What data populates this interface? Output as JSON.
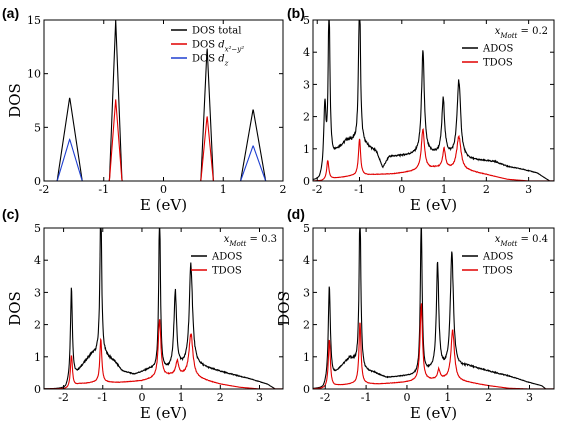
{
  "chart_data": [
    {
      "type": "line",
      "panel_label": "(a)",
      "xlabel": "E (eV)",
      "ylabel": "DOS",
      "xlim": [
        -2,
        2
      ],
      "ylim": [
        0,
        15
      ],
      "xticks": [
        -2,
        -1,
        0,
        1,
        2
      ],
      "yticks": [
        0,
        5,
        10,
        15
      ],
      "legend_position": "top-right",
      "legend": [
        "DOS total",
        "DOS d_{x²−y²}",
        "DOS d_z"
      ],
      "colors": {
        "DOS total": "#000000",
        "DOS d_{x²−y²}": "#e00000",
        "DOS d_z": "#1f3fd0"
      },
      "series": [
        {
          "name": "DOS total",
          "peaks": [
            {
              "x": -1.57,
              "h": 7.8,
              "w": 0.07,
              "shape": "tri"
            },
            {
              "x": -0.8,
              "h": 15.0,
              "w": 0.035,
              "shape": "tri"
            },
            {
              "x": 0.73,
              "h": 12.5,
              "w": 0.035,
              "shape": "tri"
            },
            {
              "x": 1.5,
              "h": 6.7,
              "w": 0.07,
              "shape": "tri"
            }
          ]
        },
        {
          "name": "DOS d_{x²−y²}",
          "peaks": [
            {
              "x": -0.8,
              "h": 7.6,
              "w": 0.035,
              "shape": "tri"
            },
            {
              "x": 0.73,
              "h": 6.1,
              "w": 0.035,
              "shape": "tri"
            }
          ]
        },
        {
          "name": "DOS d_z",
          "peaks": [
            {
              "x": -1.57,
              "h": 3.9,
              "w": 0.07,
              "shape": "tri"
            },
            {
              "x": 1.5,
              "h": 3.3,
              "w": 0.07,
              "shape": "tri"
            }
          ]
        }
      ]
    },
    {
      "type": "line",
      "panel_label": "(b)",
      "annotation": "x_Mott = 0.2",
      "xlabel": "E (eV)",
      "ylabel": "",
      "xlim": [
        -2.1,
        3.6
      ],
      "ylim": [
        0,
        5
      ],
      "xticks": [
        -2,
        -1,
        0,
        1,
        2,
        3
      ],
      "yticks": [
        0,
        1,
        2,
        3,
        4,
        5
      ],
      "legend_position": "top-right",
      "legend": [
        "ADOS",
        "TDOS"
      ],
      "colors": {
        "ADOS": "#000000",
        "TDOS": "#e00000"
      },
      "series": [
        {
          "name": "ADOS",
          "background": [
            [
              -1.95,
              0
            ],
            [
              -1.8,
              0.3
            ],
            [
              -1.55,
              0.9
            ],
            [
              -1.3,
              1.25
            ],
            [
              -1.05,
              1.2
            ],
            [
              -0.8,
              1.05
            ],
            [
              -0.6,
              0.9
            ],
            [
              -0.45,
              0.4
            ],
            [
              -0.3,
              0.75
            ],
            [
              0.2,
              0.8
            ],
            [
              0.5,
              0.85
            ],
            [
              1.0,
              0.8
            ],
            [
              1.6,
              0.65
            ],
            [
              2.2,
              0.6
            ],
            [
              2.5,
              0.45
            ],
            [
              2.9,
              0.35
            ],
            [
              3.2,
              0.25
            ],
            [
              3.4,
              0.08
            ],
            [
              3.5,
              0
            ]
          ],
          "peaks": [
            {
              "x": -1.82,
              "h": 2.0,
              "w": 0.03
            },
            {
              "x": -1.72,
              "h": 5.0,
              "w": 0.025
            },
            {
              "x": -1.0,
              "h": 5.0,
              "w": 0.025
            },
            {
              "x": 0.5,
              "h": 3.1,
              "w": 0.04
            },
            {
              "x": 0.98,
              "h": 1.7,
              "w": 0.04
            },
            {
              "x": 1.35,
              "h": 2.4,
              "w": 0.05
            }
          ]
        },
        {
          "name": "TDOS",
          "background": [
            [
              -1.9,
              0
            ],
            [
              -1.6,
              0.08
            ],
            [
              -1.2,
              0.15
            ],
            [
              -0.6,
              0.2
            ],
            [
              -0.2,
              0.22
            ],
            [
              0.3,
              0.3
            ],
            [
              0.8,
              0.4
            ],
            [
              1.6,
              0.3
            ],
            [
              2.0,
              0.2
            ],
            [
              2.5,
              0.05
            ],
            [
              3.0,
              0
            ]
          ],
          "peaks": [
            {
              "x": -1.75,
              "h": 0.6,
              "w": 0.03
            },
            {
              "x": -1.0,
              "h": 1.15,
              "w": 0.03
            },
            {
              "x": 0.5,
              "h": 1.25,
              "w": 0.045
            },
            {
              "x": 1.0,
              "h": 0.6,
              "w": 0.04
            },
            {
              "x": 1.35,
              "h": 1.05,
              "w": 0.06
            }
          ]
        }
      ]
    },
    {
      "type": "line",
      "panel_label": "(c)",
      "annotation": "x_Mott = 0.3",
      "xlabel": "E (eV)",
      "ylabel": "DOS",
      "xlim": [
        -2.5,
        3.6
      ],
      "ylim": [
        0,
        5
      ],
      "xticks": [
        -2,
        -1,
        0,
        1,
        2,
        3
      ],
      "yticks": [
        0,
        1,
        2,
        3,
        4,
        5
      ],
      "legend_position": "top-right",
      "legend": [
        "ADOS",
        "TDOS"
      ],
      "colors": {
        "ADOS": "#000000",
        "TDOS": "#e00000"
      },
      "series": [
        {
          "name": "ADOS",
          "background": [
            [
              -1.95,
              0
            ],
            [
              -1.75,
              0.3
            ],
            [
              -1.5,
              0.75
            ],
            [
              -1.3,
              1.05
            ],
            [
              -1.1,
              1.1
            ],
            [
              -0.9,
              1.0
            ],
            [
              -0.7,
              0.85
            ],
            [
              -0.5,
              0.55
            ],
            [
              -0.2,
              0.45
            ],
            [
              0.2,
              0.6
            ],
            [
              0.5,
              0.55
            ],
            [
              0.8,
              0.6
            ],
            [
              1.3,
              0.75
            ],
            [
              1.8,
              0.6
            ],
            [
              2.3,
              0.45
            ],
            [
              2.8,
              0.3
            ],
            [
              3.2,
              0.15
            ],
            [
              3.4,
              0
            ]
          ],
          "peaks": [
            {
              "x": -1.8,
              "h": 2.9,
              "w": 0.03
            },
            {
              "x": -1.05,
              "h": 5.0,
              "w": 0.025
            },
            {
              "x": 0.45,
              "h": 5.0,
              "w": 0.025
            },
            {
              "x": 0.85,
              "h": 2.4,
              "w": 0.04
            },
            {
              "x": 1.25,
              "h": 3.1,
              "w": 0.05
            }
          ]
        },
        {
          "name": "TDOS",
          "background": [
            [
              -1.9,
              0
            ],
            [
              -1.6,
              0.15
            ],
            [
              -1.2,
              0.2
            ],
            [
              -0.6,
              0.2
            ],
            [
              0.0,
              0.25
            ],
            [
              0.4,
              0.35
            ],
            [
              0.9,
              0.45
            ],
            [
              1.5,
              0.3
            ],
            [
              2.0,
              0.15
            ],
            [
              2.5,
              0.05
            ],
            [
              3.0,
              0
            ]
          ],
          "peaks": [
            {
              "x": -1.8,
              "h": 1.0,
              "w": 0.03
            },
            {
              "x": -1.05,
              "h": 1.35,
              "w": 0.03
            },
            {
              "x": 0.45,
              "h": 1.8,
              "w": 0.04
            },
            {
              "x": 0.9,
              "h": 0.4,
              "w": 0.04
            },
            {
              "x": 1.25,
              "h": 1.35,
              "w": 0.06
            }
          ]
        }
      ]
    },
    {
      "type": "line",
      "panel_label": "(d)",
      "annotation": "x_Mott = 0.4",
      "xlabel": "E (eV)",
      "ylabel": "DOS",
      "xlim": [
        -2.3,
        3.6
      ],
      "ylim": [
        0,
        5
      ],
      "xticks": [
        -2,
        -1,
        0,
        1,
        2,
        3
      ],
      "yticks": [
        0,
        1,
        2,
        3,
        4,
        5
      ],
      "legend_position": "top-right",
      "legend": [
        "ADOS",
        "TDOS"
      ],
      "colors": {
        "ADOS": "#000000",
        "TDOS": "#e00000"
      },
      "series": [
        {
          "name": "ADOS",
          "background": [
            [
              -2.05,
              0
            ],
            [
              -1.85,
              0.3
            ],
            [
              -1.6,
              0.7
            ],
            [
              -1.4,
              0.95
            ],
            [
              -1.25,
              0.8
            ],
            [
              -1.05,
              0.55
            ],
            [
              -0.8,
              0.5
            ],
            [
              -0.5,
              0.35
            ],
            [
              0.0,
              0.4
            ],
            [
              0.3,
              0.4
            ],
            [
              0.6,
              0.55
            ],
            [
              1.0,
              0.6
            ],
            [
              1.5,
              0.7
            ],
            [
              2.0,
              0.55
            ],
            [
              2.5,
              0.4
            ],
            [
              3.0,
              0.2
            ],
            [
              3.3,
              0.1
            ],
            [
              3.4,
              0
            ]
          ],
          "peaks": [
            {
              "x": -1.9,
              "h": 3.0,
              "w": 0.03
            },
            {
              "x": -1.15,
              "h": 5.0,
              "w": 0.025
            },
            {
              "x": 0.35,
              "h": 5.0,
              "w": 0.025
            },
            {
              "x": 0.75,
              "h": 3.3,
              "w": 0.035
            },
            {
              "x": 1.1,
              "h": 3.6,
              "w": 0.045
            }
          ]
        },
        {
          "name": "TDOS",
          "background": [
            [
              -2.0,
              0
            ],
            [
              -1.7,
              0.1
            ],
            [
              -1.3,
              0.15
            ],
            [
              -0.7,
              0.15
            ],
            [
              -0.1,
              0.2
            ],
            [
              0.4,
              0.25
            ],
            [
              0.9,
              0.3
            ],
            [
              1.5,
              0.2
            ],
            [
              2.0,
              0.1
            ],
            [
              2.5,
              0.02
            ],
            [
              3.0,
              0
            ]
          ],
          "peaks": [
            {
              "x": -1.9,
              "h": 1.5,
              "w": 0.03
            },
            {
              "x": -1.15,
              "h": 1.9,
              "w": 0.03
            },
            {
              "x": 0.35,
              "h": 2.4,
              "w": 0.035
            },
            {
              "x": 0.78,
              "h": 0.3,
              "w": 0.035
            },
            {
              "x": 1.12,
              "h": 1.55,
              "w": 0.05
            }
          ]
        }
      ]
    }
  ]
}
